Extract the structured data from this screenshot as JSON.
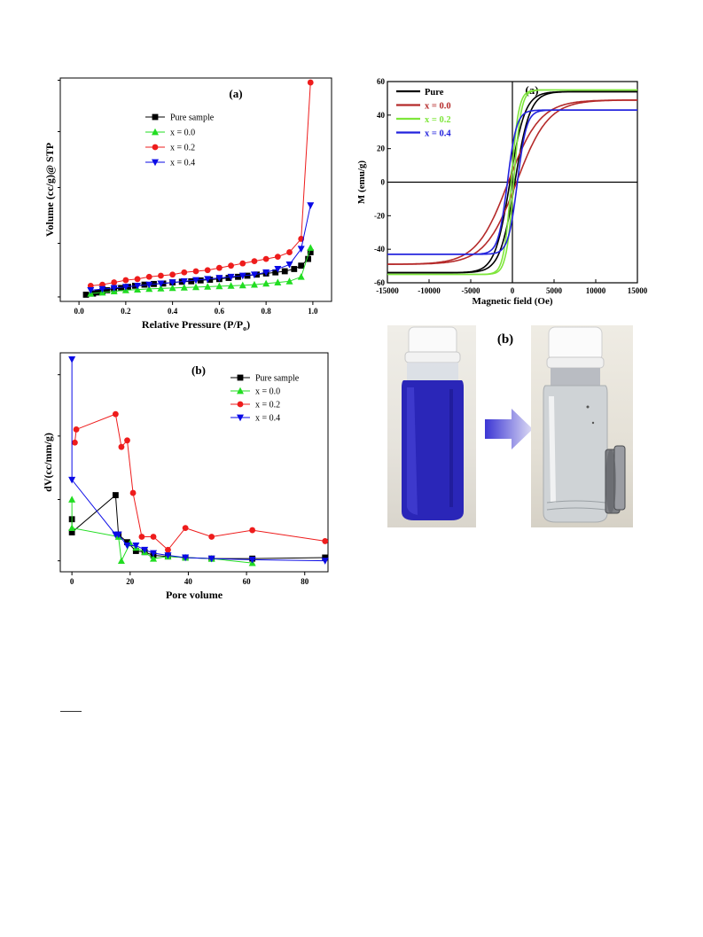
{
  "colors": {
    "black": "#000000",
    "green": "#22dd22",
    "red": "#ee1c1c",
    "blue": "#0a0ae6",
    "mag_red": "#b52a2a",
    "mag_green": "#7ee63a",
    "mag_blue": "#2222dd"
  },
  "chart_data": [
    {
      "id": "bet-isotherm",
      "type": "line",
      "panel_label": "(a)",
      "xlabel": "Relative Pressure (P/P",
      "xlabel_sub": "o",
      "xlabel_close": ")",
      "ylabel": "Volume (cc/g)@ STP",
      "xlim": [
        -0.08,
        1.08
      ],
      "ylim": [
        0,
        1
      ],
      "xticks": [
        "0.0",
        "0.2",
        "0.4",
        "0.6",
        "0.8",
        "1.0"
      ],
      "xtick_values": [
        0.0,
        0.2,
        0.4,
        0.6,
        0.8,
        1.0
      ],
      "legend": "top-left",
      "series": [
        {
          "name": "Pure sample",
          "color": "#000000",
          "marker": "square",
          "x": [
            0.03,
            0.06,
            0.08,
            0.1,
            0.12,
            0.15,
            0.18,
            0.21,
            0.24,
            0.28,
            0.32,
            0.36,
            0.4,
            0.44,
            0.48,
            0.52,
            0.56,
            0.6,
            0.64,
            0.68,
            0.72,
            0.76,
            0.8,
            0.84,
            0.88,
            0.92,
            0.95,
            0.98,
            0.99
          ],
          "y": [
            0.03,
            0.035,
            0.04,
            0.045,
            0.05,
            0.055,
            0.06,
            0.065,
            0.07,
            0.075,
            0.078,
            0.08,
            0.085,
            0.088,
            0.09,
            0.094,
            0.097,
            0.1,
            0.105,
            0.11,
            0.115,
            0.12,
            0.125,
            0.13,
            0.135,
            0.145,
            0.16,
            0.19,
            0.22
          ]
        },
        {
          "name": "x = 0.0",
          "color": "#22dd22",
          "marker": "triangle-up",
          "x": [
            0.05,
            0.1,
            0.15,
            0.2,
            0.25,
            0.3,
            0.35,
            0.4,
            0.45,
            0.5,
            0.55,
            0.6,
            0.65,
            0.7,
            0.75,
            0.8,
            0.85,
            0.9,
            0.95,
            0.99
          ],
          "y": [
            0.035,
            0.04,
            0.045,
            0.05,
            0.053,
            0.056,
            0.058,
            0.06,
            0.062,
            0.064,
            0.066,
            0.068,
            0.07,
            0.072,
            0.075,
            0.08,
            0.085,
            0.09,
            0.11,
            0.24
          ]
        },
        {
          "name": "x = 0.2",
          "color": "#ee1c1c",
          "marker": "circle",
          "x": [
            0.05,
            0.1,
            0.15,
            0.2,
            0.25,
            0.3,
            0.35,
            0.4,
            0.45,
            0.5,
            0.55,
            0.6,
            0.65,
            0.7,
            0.75,
            0.8,
            0.85,
            0.9,
            0.95,
            0.99
          ],
          "y": [
            0.07,
            0.075,
            0.085,
            0.095,
            0.1,
            0.11,
            0.115,
            0.12,
            0.13,
            0.135,
            0.14,
            0.15,
            0.16,
            0.17,
            0.18,
            0.19,
            0.2,
            0.22,
            0.28,
            0.98
          ]
        },
        {
          "name": "x = 0.4",
          "color": "#0a0ae6",
          "marker": "triangle-down",
          "x": [
            0.05,
            0.1,
            0.15,
            0.2,
            0.25,
            0.3,
            0.35,
            0.4,
            0.45,
            0.5,
            0.55,
            0.6,
            0.65,
            0.7,
            0.75,
            0.8,
            0.85,
            0.9,
            0.95,
            0.99
          ],
          "y": [
            0.05,
            0.055,
            0.06,
            0.065,
            0.07,
            0.075,
            0.08,
            0.085,
            0.09,
            0.095,
            0.1,
            0.105,
            0.11,
            0.115,
            0.12,
            0.13,
            0.145,
            0.165,
            0.235,
            0.43
          ]
        }
      ]
    },
    {
      "id": "pore-distribution",
      "type": "line",
      "panel_label": "(b)",
      "xlabel": "Pore volume",
      "ylabel": "dV(cc/mm/g)",
      "xlim": [
        -4,
        88
      ],
      "ylim": [
        0,
        1
      ],
      "xticks": [
        "0",
        "20",
        "40",
        "60",
        "80"
      ],
      "xtick_values": [
        0,
        20,
        40,
        60,
        80
      ],
      "legend": "top-right",
      "series": [
        {
          "name": "Pure sample",
          "color": "#000000",
          "marker": "square",
          "x": [
            0,
            0,
            15,
            16,
            19,
            22,
            25,
            28,
            33,
            39,
            48,
            62,
            87
          ],
          "y": [
            0.24,
            0.18,
            0.35,
            0.17,
            0.135,
            0.095,
            0.09,
            0.075,
            0.07,
            0.065,
            0.06,
            0.06,
            0.065
          ]
        },
        {
          "name": "x = 0.0",
          "color": "#22dd22",
          "marker": "triangle-up",
          "x": [
            0,
            0,
            16,
            17,
            20,
            22,
            25,
            28,
            33,
            39,
            48,
            62
          ],
          "y": [
            0.33,
            0.2,
            0.16,
            0.05,
            0.13,
            0.11,
            0.09,
            0.06,
            0.07,
            0.065,
            0.06,
            0.04
          ]
        },
        {
          "name": "x = 0.2",
          "color": "#ee1c1c",
          "marker": "circle",
          "x": [
            1,
            1.5,
            15,
            17,
            19,
            21,
            24,
            28,
            33,
            39,
            48,
            62,
            87
          ],
          "y": [
            0.59,
            0.65,
            0.72,
            0.57,
            0.6,
            0.36,
            0.16,
            0.16,
            0.1,
            0.2,
            0.16,
            0.19,
            0.14
          ]
        },
        {
          "name": "x = 0.4",
          "color": "#0a0ae6",
          "marker": "triangle-down",
          "x": [
            0,
            0,
            15,
            16,
            19,
            22,
            25,
            28,
            33,
            39,
            48,
            62,
            87
          ],
          "y": [
            0.97,
            0.42,
            0.17,
            0.17,
            0.12,
            0.12,
            0.1,
            0.085,
            0.075,
            0.065,
            0.06,
            0.055,
            0.05
          ]
        }
      ]
    },
    {
      "id": "magnetic-hysteresis",
      "type": "line",
      "panel_label": "(a)",
      "xlabel": "Magnetic field (Oe)",
      "ylabel": "M (emu/g)",
      "xlim": [
        -15000,
        15000
      ],
      "ylim": [
        -60,
        60
      ],
      "xticks": [
        "-15000",
        "-10000",
        "-5000",
        "0",
        "5000",
        "10000",
        "15000"
      ],
      "xtick_values": [
        -15000,
        -10000,
        -5000,
        0,
        5000,
        10000,
        15000
      ],
      "yticks": [
        "-60",
        "-40",
        "-20",
        "0",
        "20",
        "40",
        "60"
      ],
      "ytick_values": [
        -60,
        -40,
        -20,
        0,
        20,
        40,
        60
      ],
      "legend": "top-left",
      "series": [
        {
          "name": "Pure",
          "color": "#000000",
          "ms": 54,
          "hc": 300,
          "width": 1800
        },
        {
          "name": "x = 0.0",
          "color": "#b52a2a",
          "ms": 49,
          "hc": 500,
          "width": 3800
        },
        {
          "name": "x = 0.2",
          "color": "#7ee63a",
          "ms": 55,
          "hc": 150,
          "width": 900
        },
        {
          "name": "x = 0.4",
          "color": "#2222dd",
          "ms": 43,
          "hc": 600,
          "width": 1100
        }
      ]
    }
  ],
  "photo": {
    "panel_label": "(b)"
  }
}
